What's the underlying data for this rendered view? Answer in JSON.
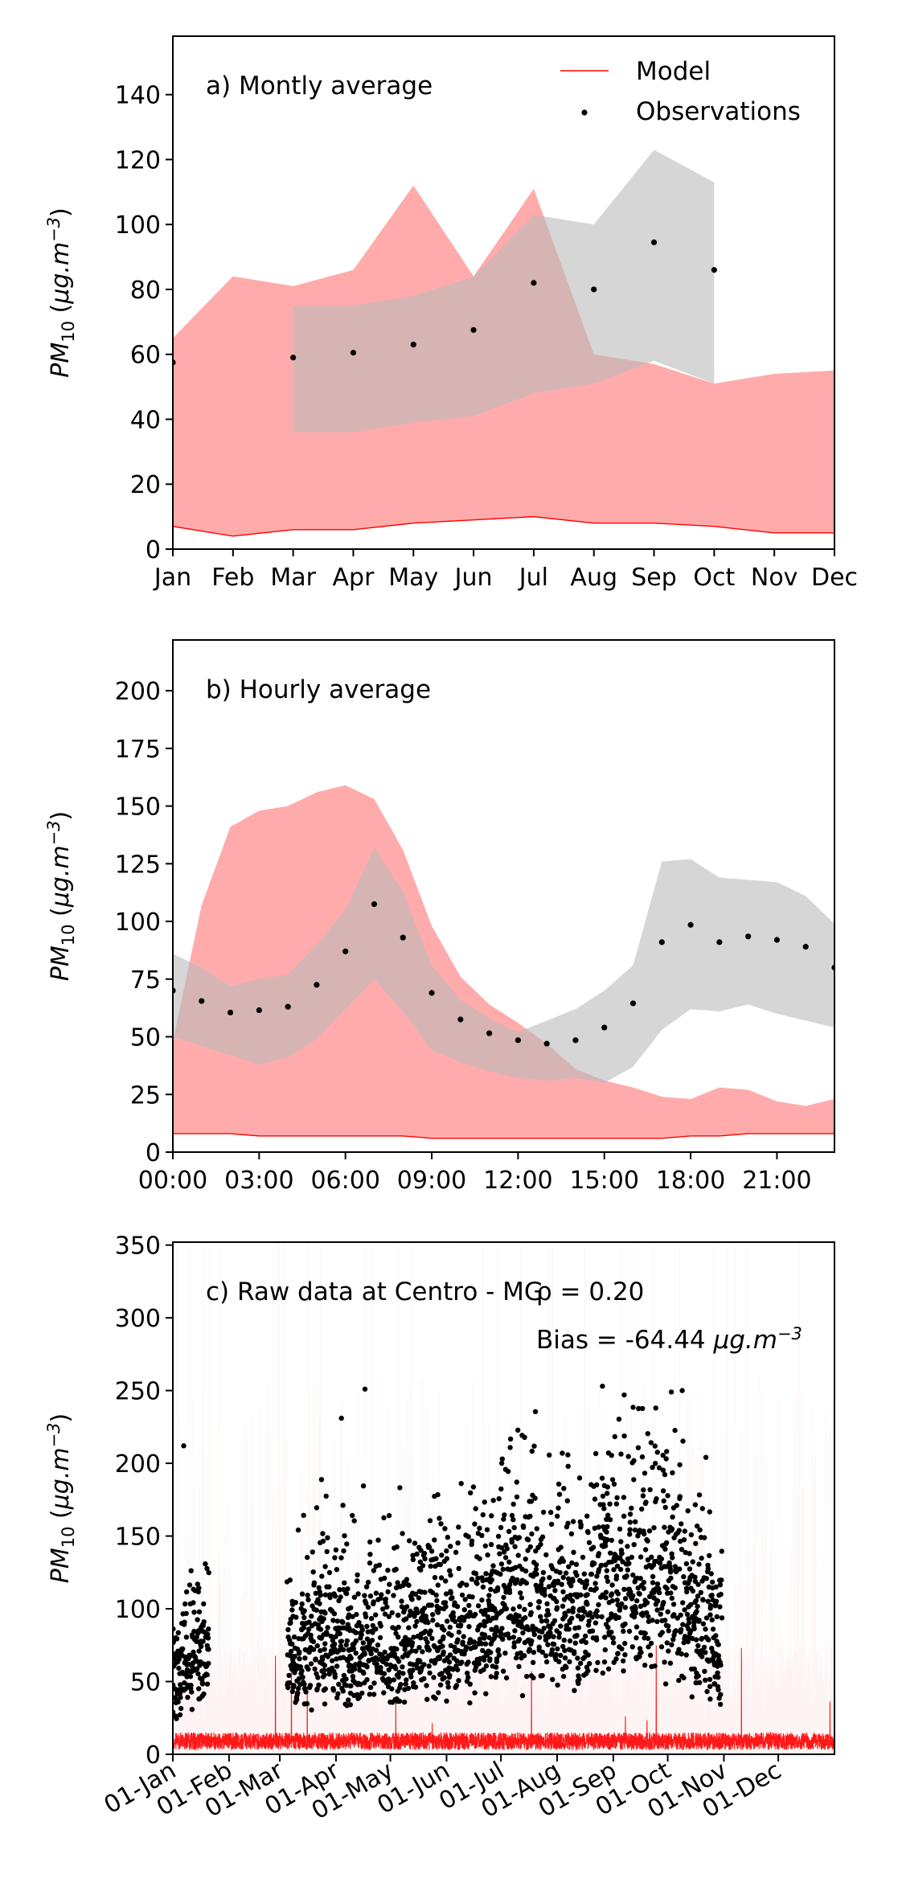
{
  "chart_data": [
    {
      "type": "area",
      "annotation": "a) Montly average",
      "ylabel": "PM10 (μg.m−3)",
      "ylim": [
        0,
        158
      ],
      "yticks": [
        0,
        20,
        40,
        60,
        80,
        100,
        120,
        140
      ],
      "categories": [
        "Jan",
        "Feb",
        "Mar",
        "Apr",
        "May",
        "Jun",
        "Jul",
        "Aug",
        "Sep",
        "Oct",
        "Nov",
        "Dec"
      ],
      "legend": {
        "placement": "top-right",
        "entries": [
          "Model",
          "Observations"
        ]
      },
      "series": [
        {
          "name": "Model",
          "role": "band",
          "color": "#ff9999",
          "lower": [
            7,
            4,
            6,
            6,
            8,
            9,
            10,
            8,
            8,
            7,
            5,
            5
          ],
          "upper": [
            65,
            84,
            81,
            86,
            112,
            84,
            111,
            60,
            57,
            51,
            54,
            55
          ]
        },
        {
          "name": "Model",
          "role": "line",
          "color": "#ff0000",
          "values": [
            7,
            4,
            6,
            6,
            8,
            9,
            10,
            8,
            8,
            7,
            5,
            5
          ]
        },
        {
          "role": "band",
          "color": "#bbbbbb",
          "start_index": 2,
          "lower": [
            36,
            36,
            39,
            41,
            48,
            51,
            58,
            51
          ],
          "upper": [
            75,
            75,
            78,
            84,
            103,
            100,
            123,
            113
          ]
        },
        {
          "name": "Observations",
          "role": "points",
          "color": "#000000",
          "values": [
            57.5,
            null,
            59,
            60.5,
            63,
            67.5,
            82,
            80,
            94.5,
            86,
            null,
            null
          ]
        }
      ]
    },
    {
      "type": "area",
      "annotation": "b) Hourly average",
      "ylabel": "PM10 (μg.m−3)",
      "ylim": [
        0,
        222
      ],
      "yticks": [
        0,
        25,
        50,
        75,
        100,
        125,
        150,
        175,
        200
      ],
      "xticks": [
        "00:00",
        "03:00",
        "06:00",
        "09:00",
        "12:00",
        "15:00",
        "18:00",
        "21:00"
      ],
      "x_hours": [
        0,
        1,
        2,
        3,
        4,
        5,
        6,
        7,
        8,
        9,
        10,
        11,
        12,
        13,
        14,
        15,
        16,
        17,
        18,
        19,
        20,
        21,
        22,
        23
      ],
      "series": [
        {
          "name": "Model",
          "role": "band",
          "color": "#ff9999",
          "lower": [
            8,
            8,
            8,
            7,
            7,
            7,
            7,
            7,
            7,
            6,
            6,
            6,
            6,
            6,
            6,
            6,
            6,
            6,
            7,
            7,
            8,
            8,
            8,
            8
          ],
          "upper": [
            48,
            107,
            141,
            148,
            150,
            156,
            159,
            153,
            131,
            98,
            76,
            64,
            56,
            47,
            36,
            31,
            28,
            24,
            23,
            28,
            27,
            22,
            20,
            23
          ]
        },
        {
          "name": "Model",
          "role": "line",
          "color": "#ff0000",
          "values": [
            8,
            8,
            8,
            7,
            7,
            7,
            7,
            7,
            7,
            6,
            6,
            6,
            6,
            6,
            6,
            6,
            6,
            6,
            7,
            7,
            8,
            8,
            8,
            8
          ]
        },
        {
          "role": "band",
          "color": "#bbbbbb",
          "lower": [
            50,
            46,
            42,
            38,
            41,
            49,
            62,
            75,
            61,
            44,
            39,
            35,
            32,
            31,
            32,
            30,
            37,
            53,
            62,
            61,
            64,
            60,
            57,
            54
          ],
          "upper": [
            86,
            80,
            72,
            75,
            77,
            90,
            105,
            132,
            113,
            81,
            66,
            58,
            52,
            57,
            62,
            70,
            81,
            126,
            127,
            119,
            118,
            117,
            111,
            99
          ]
        },
        {
          "name": "Observations",
          "role": "points",
          "color": "#000000",
          "values": [
            70,
            65.5,
            60.5,
            61.5,
            63,
            72.5,
            87,
            107.5,
            93,
            69,
            57.5,
            51.5,
            48.5,
            47,
            48.5,
            54,
            64.5,
            91,
            98.5,
            91,
            93.5,
            92,
            89,
            80
          ]
        }
      ]
    },
    {
      "type": "scatter",
      "annotation": "c) Raw data at Centro - MG",
      "stats": [
        "ρ = 0.20",
        "Bias = -64.44 μg.m−3"
      ],
      "ylabel": "PM10 (μg.m−3)",
      "ylim": [
        0,
        352
      ],
      "yticks": [
        0,
        50,
        100,
        150,
        200,
        250,
        300,
        350
      ],
      "xlim_days": [
        0,
        365
      ],
      "xticks": [
        {
          "label": "01-Jan",
          "day": 0
        },
        {
          "label": "01-Feb",
          "day": 31
        },
        {
          "label": "01-Mar",
          "day": 59
        },
        {
          "label": "01-Apr",
          "day": 90
        },
        {
          "label": "01-May",
          "day": 120
        },
        {
          "label": "01-Jun",
          "day": 151
        },
        {
          "label": "01-Jul",
          "day": 181
        },
        {
          "label": "01-Aug",
          "day": 212
        },
        {
          "label": "01-Sep",
          "day": 243
        },
        {
          "label": "01-Oct",
          "day": 273
        },
        {
          "label": "01-Nov",
          "day": 304
        },
        {
          "label": "01-Dec",
          "day": 334
        }
      ],
      "series": [
        {
          "name": "Model",
          "role": "hourly line",
          "color": "#ff0000",
          "typical_range": [
            3,
            15
          ]
        },
        {
          "name": "Observations",
          "role": "hourly points",
          "color": "#000000",
          "coverage_days": [
            [
              0,
              20
            ],
            [
              63,
              303
            ]
          ],
          "weekly_mean": [
            [
              1,
              55
            ],
            [
              8,
              65
            ],
            [
              15,
              75
            ],
            [
              66,
              70
            ],
            [
              73,
              70
            ],
            [
              80,
              85
            ],
            [
              87,
              80
            ],
            [
              94,
              75
            ],
            [
              101,
              70
            ],
            [
              108,
              80
            ],
            [
              115,
              75
            ],
            [
              122,
              70
            ],
            [
              129,
              85
            ],
            [
              136,
              85
            ],
            [
              143,
              90
            ],
            [
              150,
              85
            ],
            [
              157,
              90
            ],
            [
              164,
              85
            ],
            [
              171,
              95
            ],
            [
              178,
              95
            ],
            [
              185,
              110
            ],
            [
              192,
              100
            ],
            [
              199,
              100
            ],
            [
              206,
              100
            ],
            [
              213,
              100
            ],
            [
              220,
              95
            ],
            [
              227,
              100
            ],
            [
              234,
              110
            ],
            [
              241,
              115
            ],
            [
              248,
              120
            ],
            [
              255,
              120
            ],
            [
              262,
              125
            ],
            [
              269,
              120
            ],
            [
              276,
              115
            ],
            [
              283,
              110
            ],
            [
              290,
              95
            ],
            [
              297,
              80
            ]
          ],
          "notable_peaks": [
            [
              6,
              212
            ],
            [
              93,
              231
            ],
            [
              106,
              251
            ],
            [
              237,
              253
            ],
            [
              281,
              250
            ],
            [
              275,
              249
            ],
            [
              249,
              247
            ]
          ]
        }
      ]
    }
  ]
}
